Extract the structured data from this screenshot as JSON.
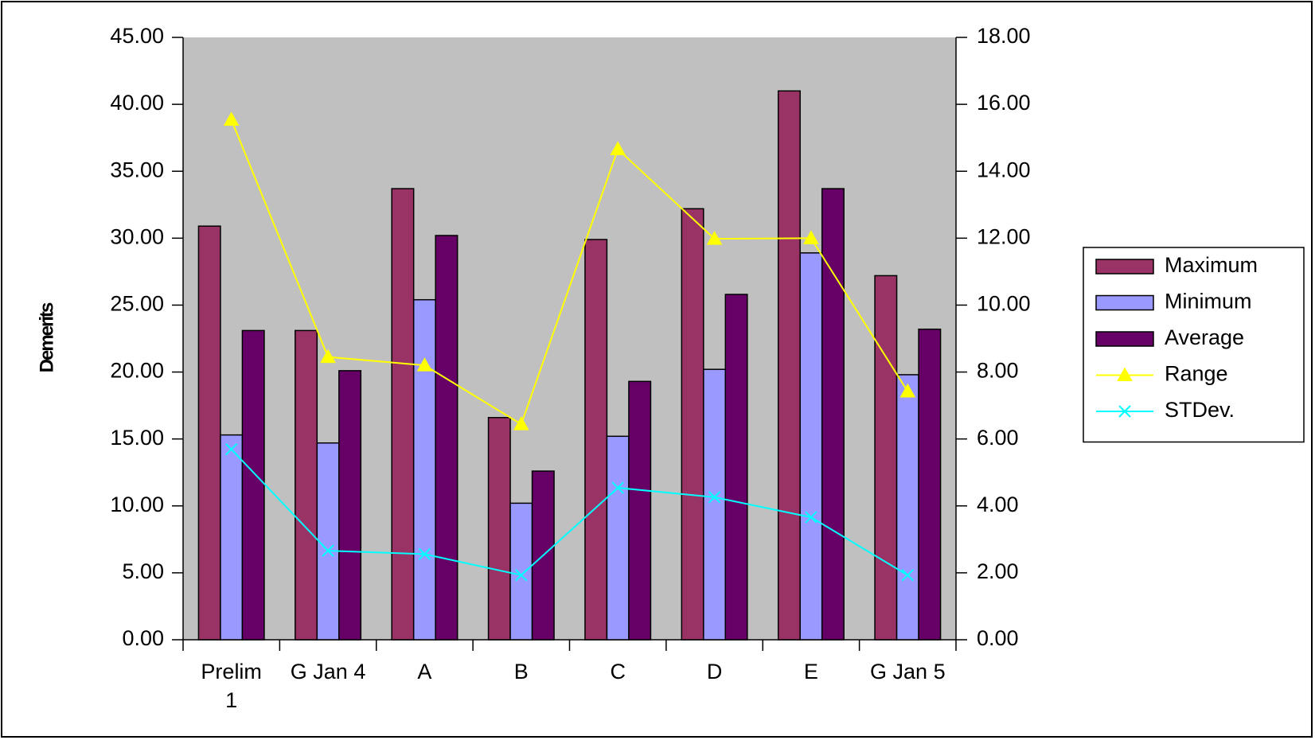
{
  "chart_data": {
    "type": "bar",
    "y_label": "Demerits",
    "categories": [
      "Prelim 1",
      "G Jan 4",
      "A",
      "B",
      "C",
      "D",
      "E",
      "G Jan 5"
    ],
    "series": [
      {
        "name": "Maximum",
        "type": "bar",
        "color": "#993366",
        "values": [
          30.9,
          23.1,
          33.7,
          16.6,
          29.9,
          32.2,
          41.0,
          27.2
        ]
      },
      {
        "name": "Minimum",
        "type": "bar",
        "color": "#9999ff",
        "values": [
          15.3,
          14.7,
          25.4,
          10.2,
          15.2,
          20.2,
          28.9,
          19.8
        ]
      },
      {
        "name": "Average",
        "type": "bar",
        "color": "#660066",
        "values": [
          23.1,
          20.1,
          30.2,
          12.6,
          19.3,
          25.8,
          33.7,
          23.2
        ]
      },
      {
        "name": "Range",
        "type": "line",
        "marker": "triangle",
        "axis": "y2",
        "color": "#ffff00",
        "values": [
          15.54,
          8.45,
          8.2,
          6.44,
          14.66,
          11.98,
          12.0,
          7.42
        ]
      },
      {
        "name": "STDev.",
        "type": "line",
        "marker": "x",
        "axis": "y2",
        "color": "#00ffff",
        "values": [
          5.69,
          2.66,
          2.56,
          1.93,
          4.54,
          4.26,
          3.66,
          1.93
        ]
      }
    ],
    "ylim": [
      0,
      45
    ],
    "yticks": [
      {
        "value": 0,
        "label": "0.00"
      },
      {
        "value": 5,
        "label": "5.00"
      },
      {
        "value": 10,
        "label": "10.00"
      },
      {
        "value": 15,
        "label": "15.00"
      },
      {
        "value": 20,
        "label": "20.00"
      },
      {
        "value": 25,
        "label": "25.00"
      },
      {
        "value": 30,
        "label": "30.00"
      },
      {
        "value": 35,
        "label": "35.00"
      },
      {
        "value": 40,
        "label": "40.00"
      },
      {
        "value": 45,
        "label": "45.00"
      }
    ],
    "y2lim": [
      0,
      18
    ],
    "y2ticks": [
      {
        "value": 0,
        "label": "0.00"
      },
      {
        "value": 2,
        "label": "2.00"
      },
      {
        "value": 4,
        "label": "4.00"
      },
      {
        "value": 6,
        "label": "6.00"
      },
      {
        "value": 8,
        "label": "8.00"
      },
      {
        "value": 10,
        "label": "10.00"
      },
      {
        "value": 12,
        "label": "12.00"
      },
      {
        "value": 14,
        "label": "14.00"
      },
      {
        "value": 16,
        "label": "16.00"
      },
      {
        "value": 18,
        "label": "18.00"
      }
    ],
    "grid": false,
    "legend": "right",
    "plot_background": "#c0c0c0"
  }
}
